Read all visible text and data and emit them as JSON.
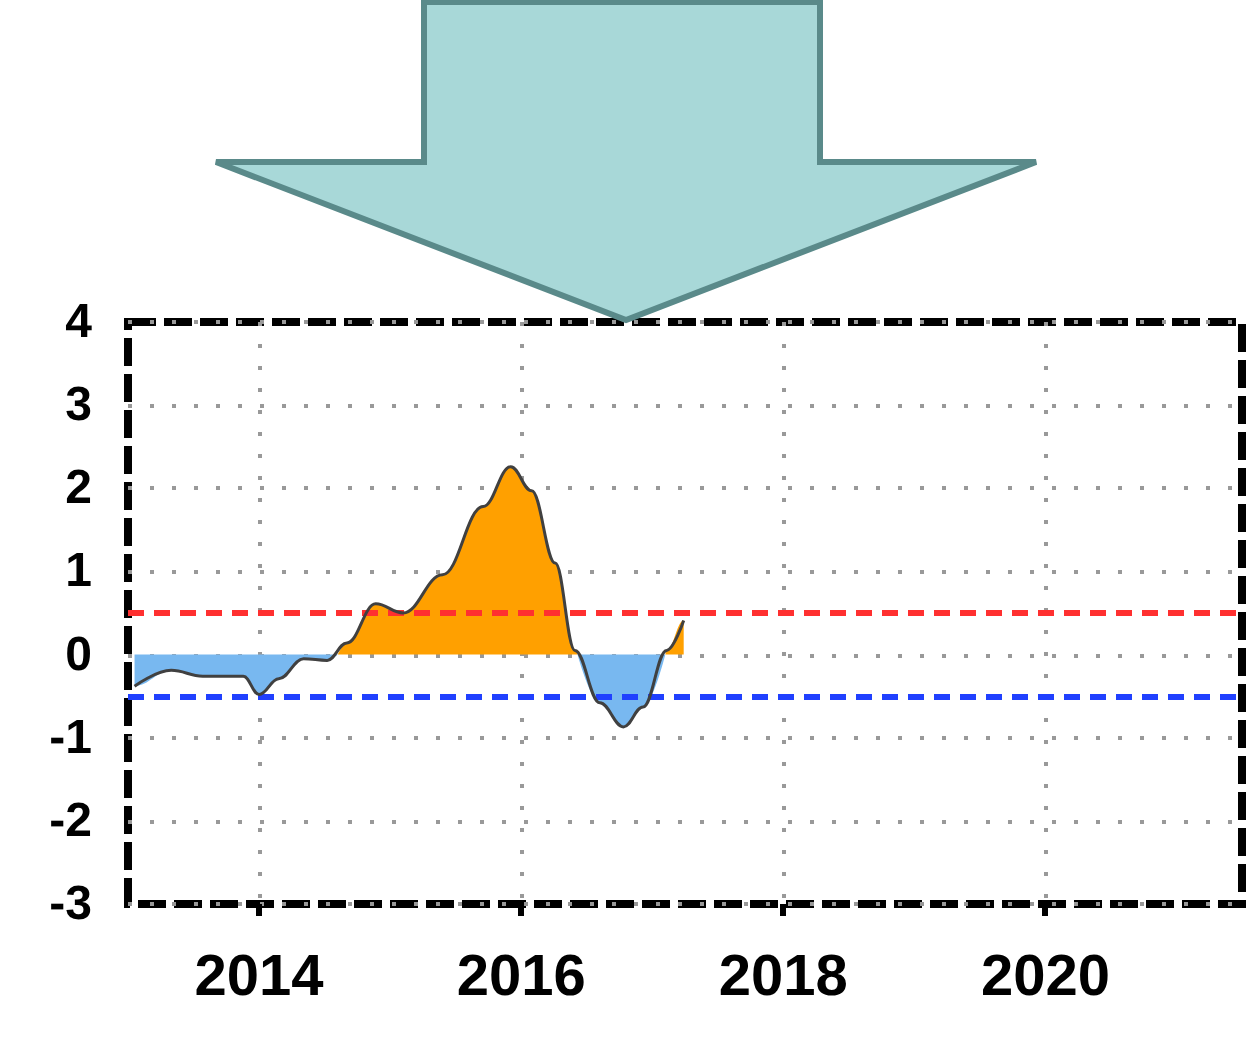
{
  "chart_data": {
    "type": "area",
    "xlim": [
      2013,
      2021.5
    ],
    "xticks": [
      2014,
      2016,
      2018,
      2020
    ],
    "ylim": [
      -3,
      4
    ],
    "yticks": [
      -3,
      -2,
      -1,
      0,
      1,
      2,
      3,
      4
    ],
    "grid": true,
    "series": [
      {
        "type": "line",
        "color": "#404040",
        "x": [
          2013.05,
          2013.33,
          2013.57,
          2013.88,
          2014.0,
          2014.15,
          2014.34,
          2014.52,
          2014.67,
          2014.89,
          2015.1,
          2015.4,
          2015.71,
          2015.92,
          2016.08,
          2016.26,
          2016.41,
          2016.6,
          2016.78,
          2016.93,
          2017.11,
          2017.24
        ],
        "values": [
          -0.38,
          -0.19,
          -0.26,
          -0.26,
          -0.48,
          -0.29,
          -0.05,
          -0.07,
          0.14,
          0.61,
          0.5,
          0.96,
          1.78,
          2.26,
          1.97,
          1.1,
          0.05,
          -0.58,
          -0.87,
          -0.63,
          0.05,
          0.41
        ]
      },
      {
        "color": "#ffa000",
        "x": [
          2014.6,
          2014.67,
          2014.89,
          2015.1,
          2015.4,
          2015.71,
          2015.92,
          2016.08,
          2016.26,
          2016.41,
          2016.43,
          2016.5,
          2017.1,
          2017.11,
          2017.24,
          2017.24
        ],
        "values": [
          0,
          0.14,
          0.61,
          0.5,
          0.96,
          1.78,
          2.26,
          1.97,
          1.1,
          0.05,
          0,
          null,
          0,
          0.05,
          0.41,
          0
        ]
      },
      {
        "color": "#78b8f0",
        "x": [
          2013.05,
          2013.05,
          2013.33,
          2013.57,
          2013.88,
          2014.0,
          2014.15,
          2014.34,
          2014.52,
          2014.6,
          2016.0,
          2016.43,
          2016.6,
          2016.78,
          2016.93,
          2017.1
        ],
        "values": [
          0,
          -0.38,
          -0.19,
          -0.26,
          -0.26,
          -0.48,
          -0.29,
          -0.05,
          -0.07,
          0,
          null,
          0,
          -0.58,
          -0.87,
          -0.63,
          0
        ]
      }
    ],
    "ref_lines": [
      {
        "axis": "y",
        "value": 0.5,
        "color": "#ff3030",
        "line_style": "dashed"
      },
      {
        "axis": "y",
        "value": -0.5,
        "color": "#2040ff",
        "line_style": "dashed"
      }
    ]
  }
}
